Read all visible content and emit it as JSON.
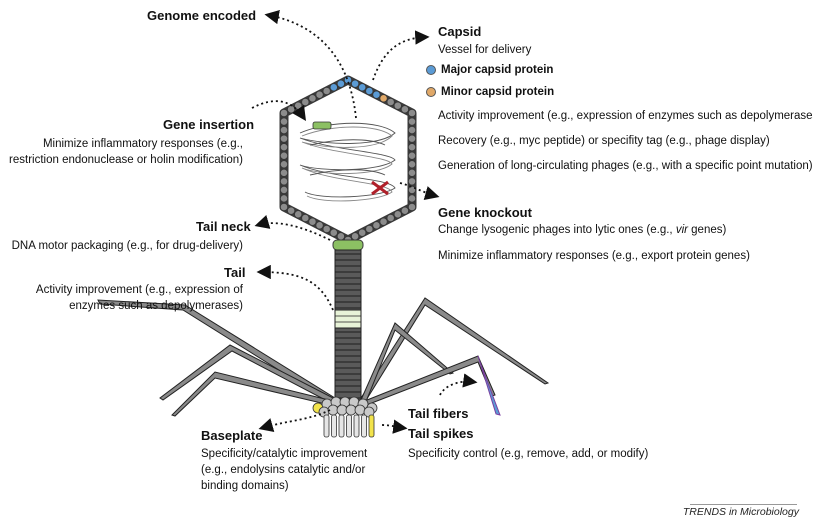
{
  "genome": {
    "title": "Genome encoded"
  },
  "capsid": {
    "title": "Capsid",
    "subtitle": "Vessel for delivery",
    "legend_major": "Major capsid protein",
    "legend_minor": "Minor capsid protein",
    "items": [
      "Activity improvement (e.g., expression of enzymes such as depolymerases)",
      "Recovery (e.g., myc peptide) or specifity tag (e.g., phage display)",
      "Generation of long-circulating phages (e.g., with a specific point mutation)"
    ]
  },
  "gene_insertion": {
    "title": "Gene insertion",
    "line1": "Minimize inflammatory responses (e.g.,",
    "line2": "restriction endonuclease or holin modification)"
  },
  "gene_knockout": {
    "title": "Gene knockout",
    "item1_prefix": "Change lysogenic phages into lytic ones (e.g., ",
    "item1_italic": "vir",
    "item1_suffix": " genes)",
    "item2": "Minimize inflammatory responses (e.g., export protein genes)"
  },
  "tail_neck": {
    "title": "Tail neck",
    "line1": "DNA motor packaging (e.g., for drug-delivery)"
  },
  "tail": {
    "title": "Tail",
    "line1": "Activity improvement (e.g., expression of",
    "line2": "enzymes such as depolymerases)"
  },
  "baseplate": {
    "title": "Baseplate",
    "line1": "Specificity/catalytic improvement",
    "line2": "(e.g., endolysins catalytic and/or",
    "line3": "binding domains)"
  },
  "tail_fibers": {
    "title": "Tail fibers"
  },
  "tail_spikes": {
    "title": "Tail spikes",
    "line1": "Specificity control (e.g, remove, add, or modify)"
  },
  "footer": "TRENDS in Microbiology",
  "colors": {
    "major": "#5b9bd5",
    "minor": "#e0a868",
    "neck": "#8cc063",
    "band": "#e8f3d8",
    "baseplate_yellow": "#f2e34b"
  }
}
